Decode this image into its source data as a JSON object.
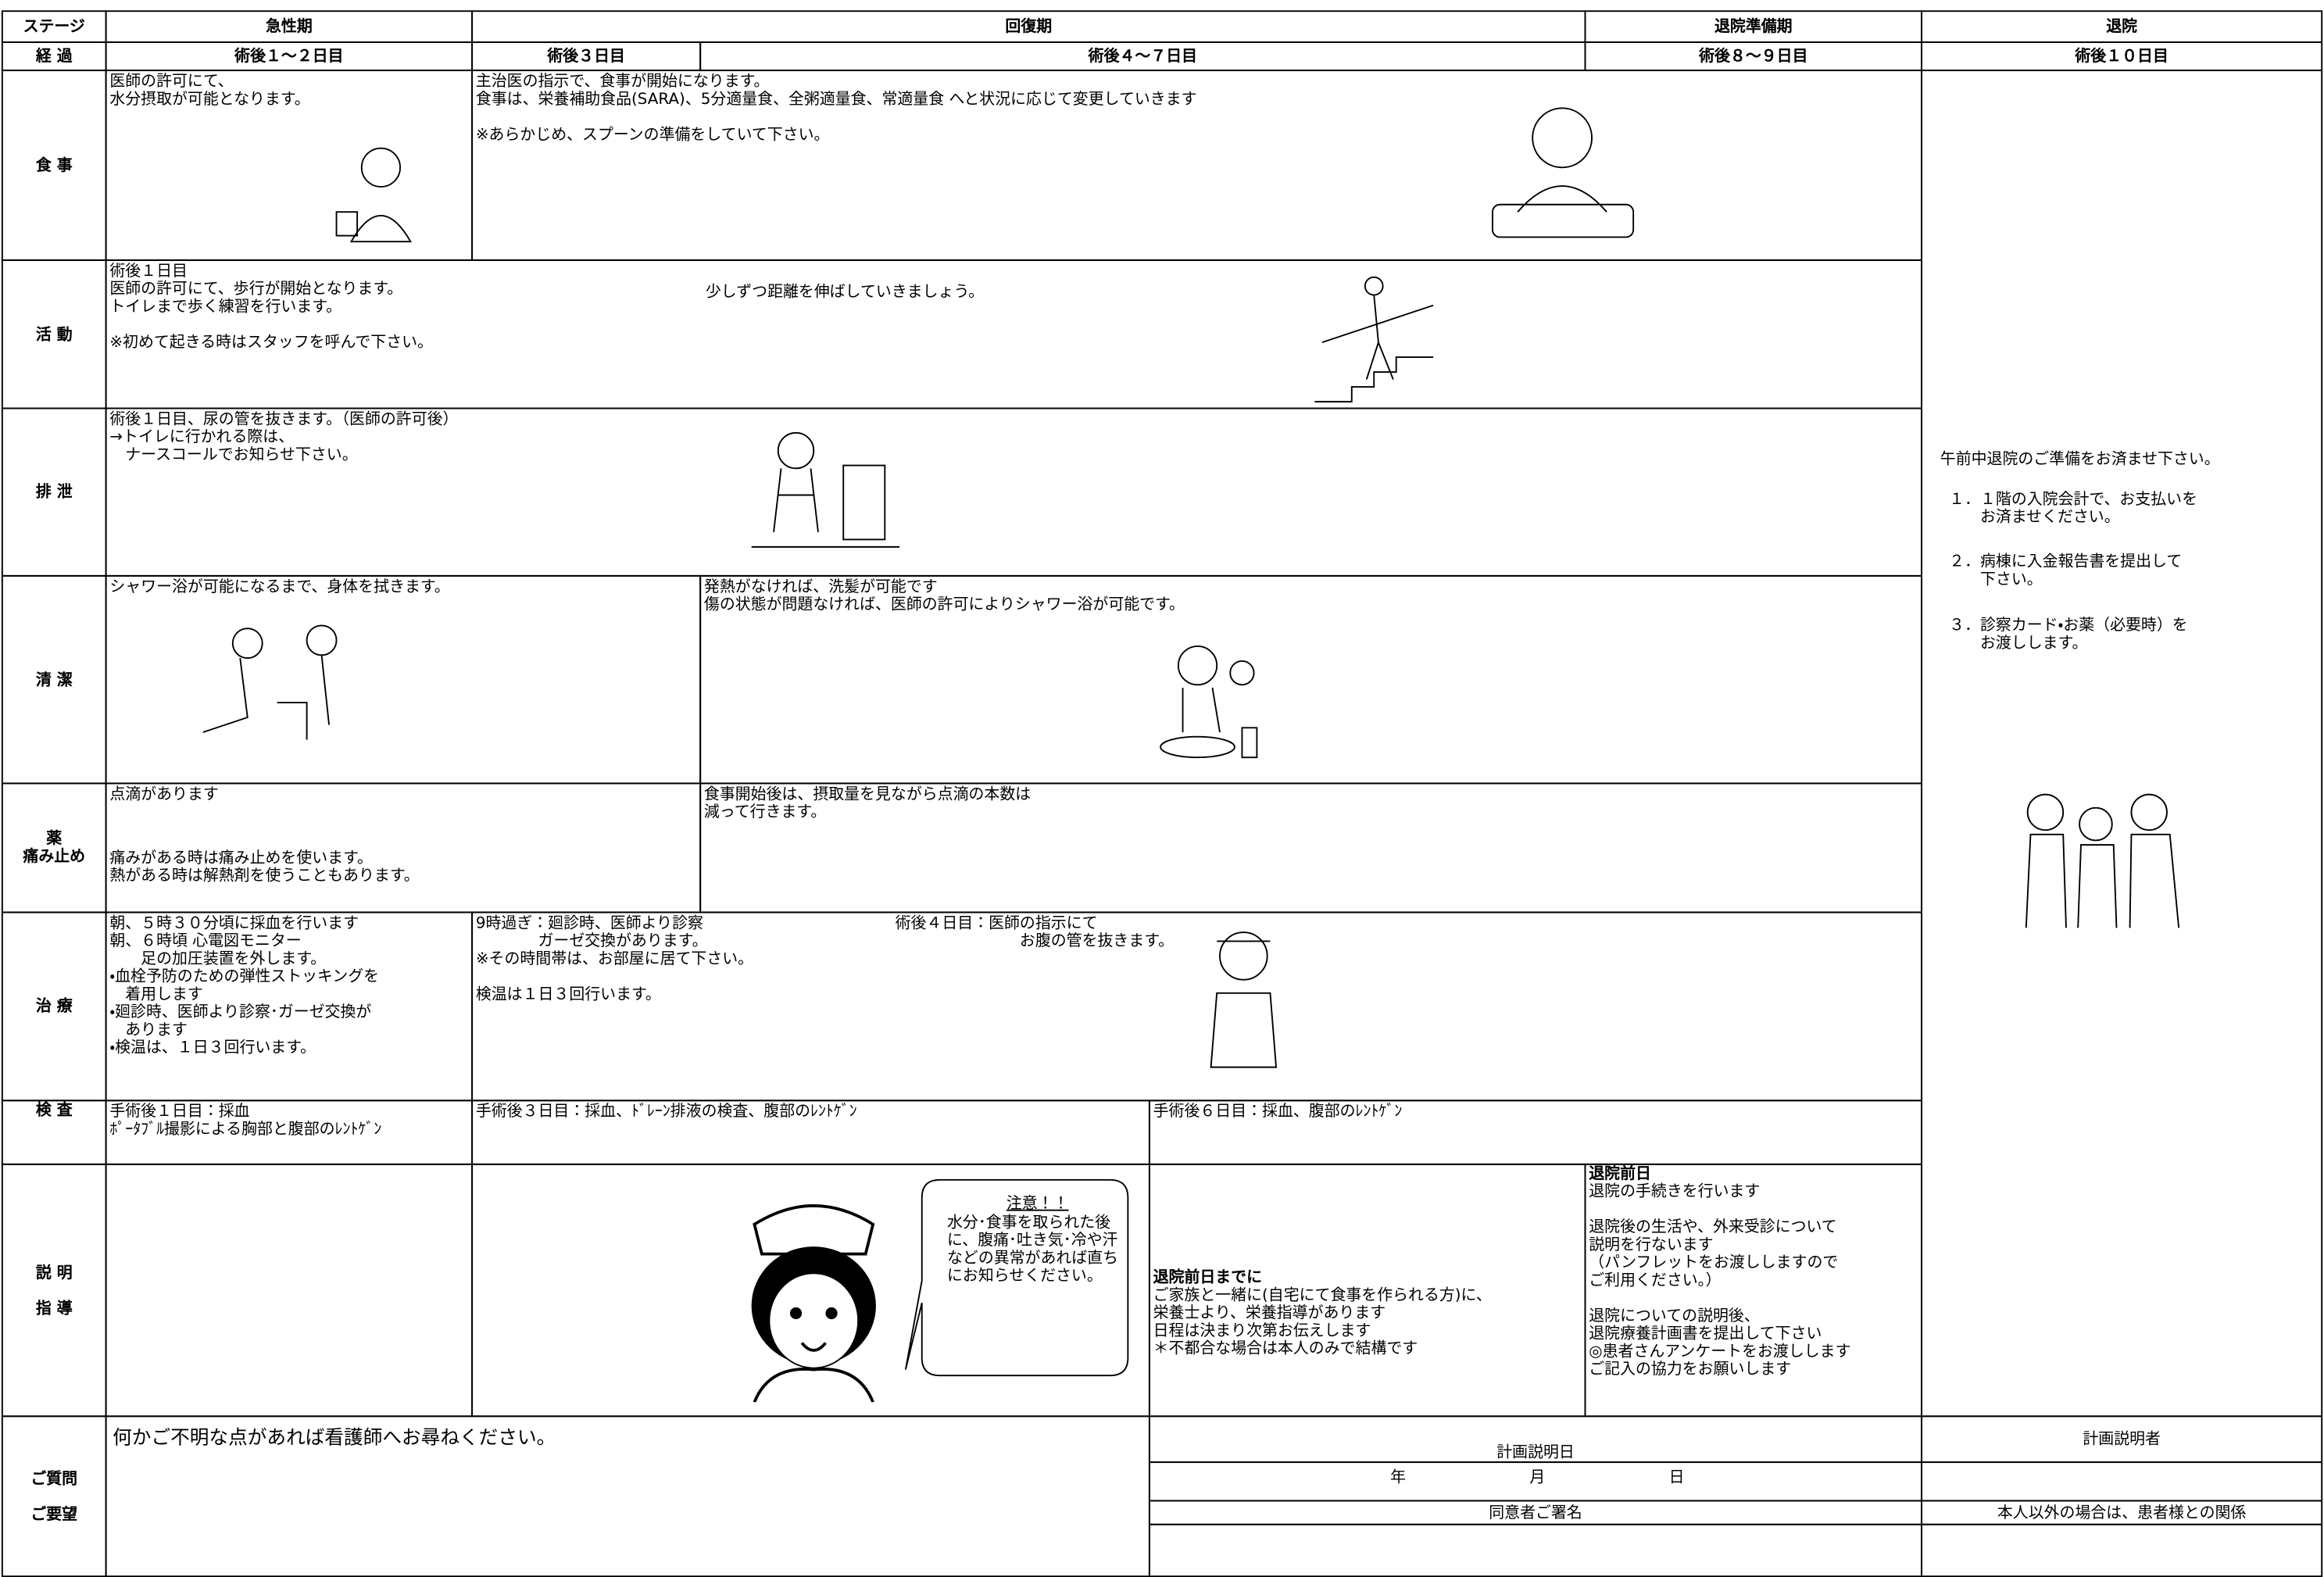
{
  "header": {
    "stage_label": "ステージ",
    "stages": [
      "急性期",
      "回復期",
      "退院準備期",
      "退院"
    ],
    "course_label": "経 過",
    "days": [
      "術後１～２日目",
      "術後３日目",
      "術後４～７日目",
      "術後８～９日目",
      "術後１０日目"
    ]
  },
  "meal": {
    "label": "食 事",
    "acute": "医師の許可にて、\n水分摂取が可能となります。",
    "recovery": "主治医の指示で、食事が開始になります。\n食事は、栄養補助食品(SARA)、5分適量食、全粥適量食、常適量食 へと状況に応じて変更していきます\n\n※あらかじめ、スプーンの準備をしていて下さい。"
  },
  "activity": {
    "label": "活 動",
    "text": "術後１日目\n医師の許可にて、歩行が開始となります。\nトイレまで歩く練習を行います。\n\n※初めて起きる時はスタッフを呼んで下さい。",
    "note": "少しずつ距離を伸ばしていきましょう。"
  },
  "excretion": {
    "label": "排 泄",
    "text": "術後１日目、尿の管を抜きます。（医師の許可後）\n→トイレに行かれる際は、\n　ナースコールでお知らせ下さい。"
  },
  "hygiene": {
    "label": "清 潔",
    "acute": "シャワー浴が可能になるまで、身体を拭きます。",
    "recovery": "発熱がなければ、洗髪が可能です\n傷の状態が問題なければ、医師の許可によりシャワー浴が可能です。"
  },
  "medicine": {
    "label": "薬\n痛み止め",
    "drip": "点滴があります",
    "painkiller": "痛みがある時は痛み止めを使います。\n熱がある時は解熱剤を使うこともあります。",
    "recovery": "食事開始後は、摂取量を見ながら点滴の本数は\n減って行きます。"
  },
  "treatment": {
    "label": "治 療",
    "acute": "朝、５時３０分頃に採血を行います\n朝、６時頃 心電図モニター\n　　足の加圧装置を外します。\n・血栓予防のための弾性ストッキングを\n　着用します\n・廻診時、医師より診察･ガーゼ交換が\n　あります\n・検温は、１日３回行います。",
    "recovery": "9時過ぎ：廻診時、医師より診察\n　　　　ガーゼ交換があります。\n※その時間帯は、お部屋に居て下さい。\n\n検温は１日３回行います。",
    "day4": "術後４日目：医師の指示にて\n　　　　　　　　お腹の管を抜きます。"
  },
  "exam": {
    "label": "検 査",
    "day1": "手術後１日目：採血\nﾎﾟｰﾀﾌﾞﾙ撮影による胸部と腹部のﾚﾝﾄｹﾞﾝ",
    "day3": "手術後３日目：採血、ﾄﾞﾚｰﾝ排液の検査、腹部のﾚﾝﾄｹﾞﾝ",
    "day6": "手術後６日目：採血、腹部のﾚﾝﾄｹﾞﾝ"
  },
  "guidance": {
    "label": "説 明\n\n指 導",
    "caution_title": "注意！！",
    "caution": "水分･食事を取られた後に、腹痛･吐き気･冷や汗などの異常があれば直ちにお知らせください。",
    "before_heading": "退院前日までに",
    "before": "ご家族と一緒に(自宅にて食事を作られる方)に、\n栄養士より、栄養指導があります\n日程は決まり次第お伝えします\n＊不都合な場合は本人のみで結構です",
    "eve_heading": "退院前日",
    "eve": "退院の手続きを行います\n\n退院後の生活や、外来受診について\n説明を行ないます\n（パンフレットをお渡ししますので\nご利用ください。）\n\n退院についての説明後、\n退院療養計画書を提出して下さい\n◎患者さんアンケートをお渡しします\nご記入の協力をお願いします"
  },
  "discharge": {
    "intro": "午前中退院のご準備をお済ませ下さい。",
    "steps": [
      "１．１階の入院会計で、お支払いを\n　　お済ませください。",
      "２．病棟に入金報告書を提出して\n　　下さい。",
      "３．診察カード・お薬（必要時）を\n　　お渡しします。"
    ]
  },
  "footer": {
    "label": "ご質問\n\nご要望",
    "message": "何かご不明な点があれば看護師へお尋ねください。",
    "plan_date": "計画説明日",
    "date_parts": [
      "年",
      "月",
      "日"
    ],
    "consent": "同意者ご署名",
    "explainer": "計画説明者",
    "relation": "本人以外の場合は、患者様との関係"
  }
}
